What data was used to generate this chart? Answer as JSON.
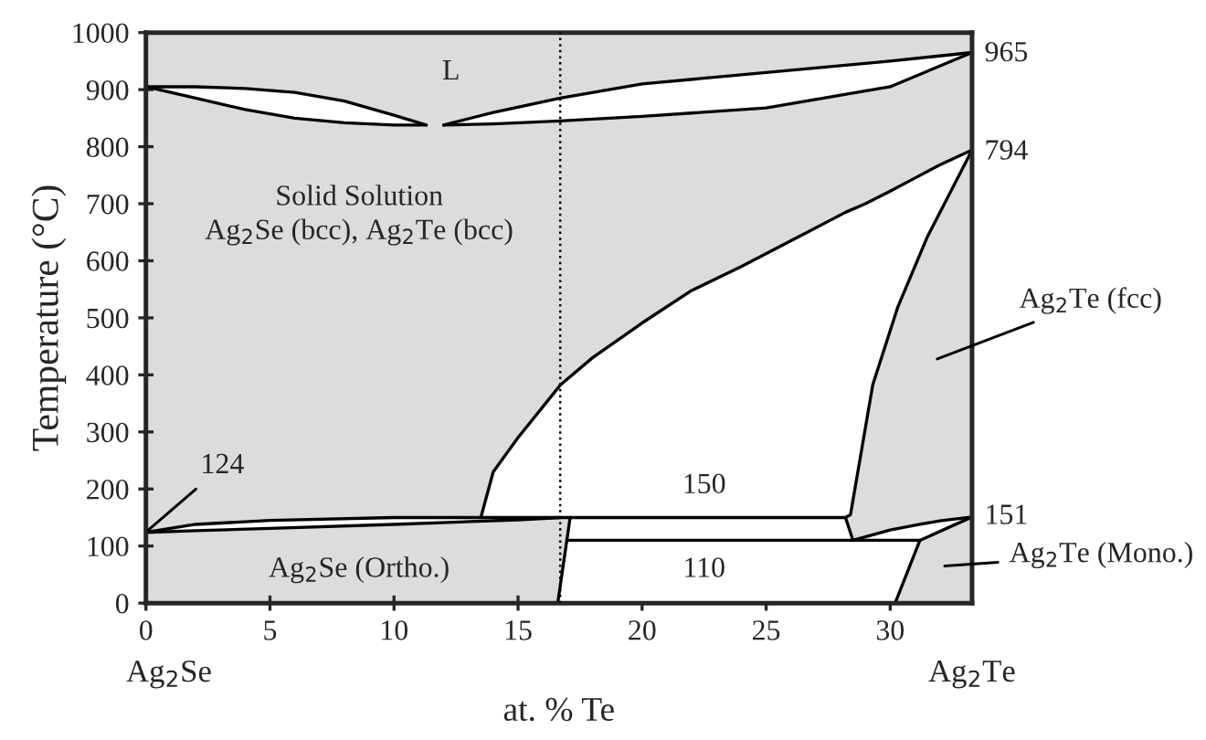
{
  "chart_data": {
    "type": "line",
    "xlabel": "at. % Te",
    "ylabel": "Temperature (°C)",
    "xlim": [
      0,
      33.3
    ],
    "xticks": [
      0,
      5,
      10,
      15,
      20,
      25,
      30
    ],
    "ylim": [
      0,
      1000
    ],
    "yticks": [
      0,
      100,
      200,
      300,
      400,
      500,
      600,
      700,
      800,
      900,
      1000
    ],
    "marker": "none",
    "line_style": "solid",
    "series": [
      {
        "color": "#000000",
        "x": [
          0,
          2,
          4,
          6,
          8,
          10,
          11.3
        ],
        "values": [
          905,
          905,
          902,
          895,
          880,
          855,
          838
        ]
      },
      {
        "color": "#000000",
        "x": [
          0,
          2,
          4,
          6,
          8,
          10,
          11.3
        ],
        "values": [
          905,
          885,
          865,
          850,
          842,
          838,
          838
        ]
      },
      {
        "color": "#000000",
        "x": [
          12,
          14,
          16.7,
          20,
          25,
          30,
          33.3
        ],
        "values": [
          838,
          860,
          885,
          910,
          930,
          950,
          965
        ]
      },
      {
        "color": "#000000",
        "x": [
          12,
          14,
          16.7,
          20,
          25,
          30,
          33.3
        ],
        "values": [
          838,
          840,
          845,
          853,
          868,
          905,
          965
        ]
      },
      {
        "color": "#000000",
        "x": [
          13.5,
          14,
          15,
          16.7,
          18,
          20,
          22,
          24,
          26,
          28.2,
          29,
          30,
          31,
          32,
          33.3
        ],
        "values": [
          150,
          230,
          290,
          382,
          430,
          491,
          548,
          590,
          635,
          685,
          700,
          722,
          745,
          768,
          794
        ]
      },
      {
        "color": "#000000",
        "x": [
          28.2,
          28.4,
          29.3,
          30.3,
          31.5,
          33.3
        ],
        "values": [
          150,
          155,
          383,
          518,
          642,
          794
        ]
      },
      {
        "color": "#000000",
        "x": [
          0,
          2,
          5,
          10,
          15,
          16.7,
          28.2,
          28.5
        ],
        "values": [
          124,
          138,
          145,
          150,
          150,
          150,
          150,
          110
        ]
      },
      {
        "color": "#000000",
        "x": [
          0,
          2,
          5,
          10,
          15,
          16.7
        ],
        "values": [
          124,
          127,
          131,
          138,
          146,
          150
        ]
      },
      {
        "color": "#000000",
        "x": [
          17.0,
          31.2,
          33.3
        ],
        "values": [
          110,
          110,
          151
        ]
      },
      {
        "color": "#000000",
        "x": [
          16.6,
          17.1
        ],
        "values": [
          0,
          150
        ]
      },
      {
        "color": "#000000",
        "x": [
          30.2,
          31.2
        ],
        "values": [
          0,
          110
        ]
      },
      {
        "color": "#000000",
        "x": [
          28.5,
          30,
          31.2,
          32,
          33.3
        ],
        "values": [
          110,
          128,
          138,
          144,
          151
        ]
      }
    ],
    "bands": [
      {
        "axis": "x",
        "from": 0,
        "to": 33.3,
        "color": "#dcdcdc"
      }
    ],
    "ref_lines": [
      {
        "axis": "x",
        "value": 16.7,
        "color": "#000000",
        "line_style": "dotted"
      }
    ],
    "annotations": [
      "L",
      "Solid Solution",
      "Ag$_{2}$Se (bcc), Ag$_{2}$Te (bcc)",
      "965",
      "794",
      "151",
      {
        "text": "124",
        "x": 0.1,
        "y": 128
      },
      "Ag$_{2}$Te (fcc)",
      "Ag$_{2}$Te (Mono.)",
      "150",
      "110",
      "Ag$_{2}$Se (Ortho.)",
      "Ag$_{2}$Se",
      "Ag$_{2}$Te"
    ]
  }
}
